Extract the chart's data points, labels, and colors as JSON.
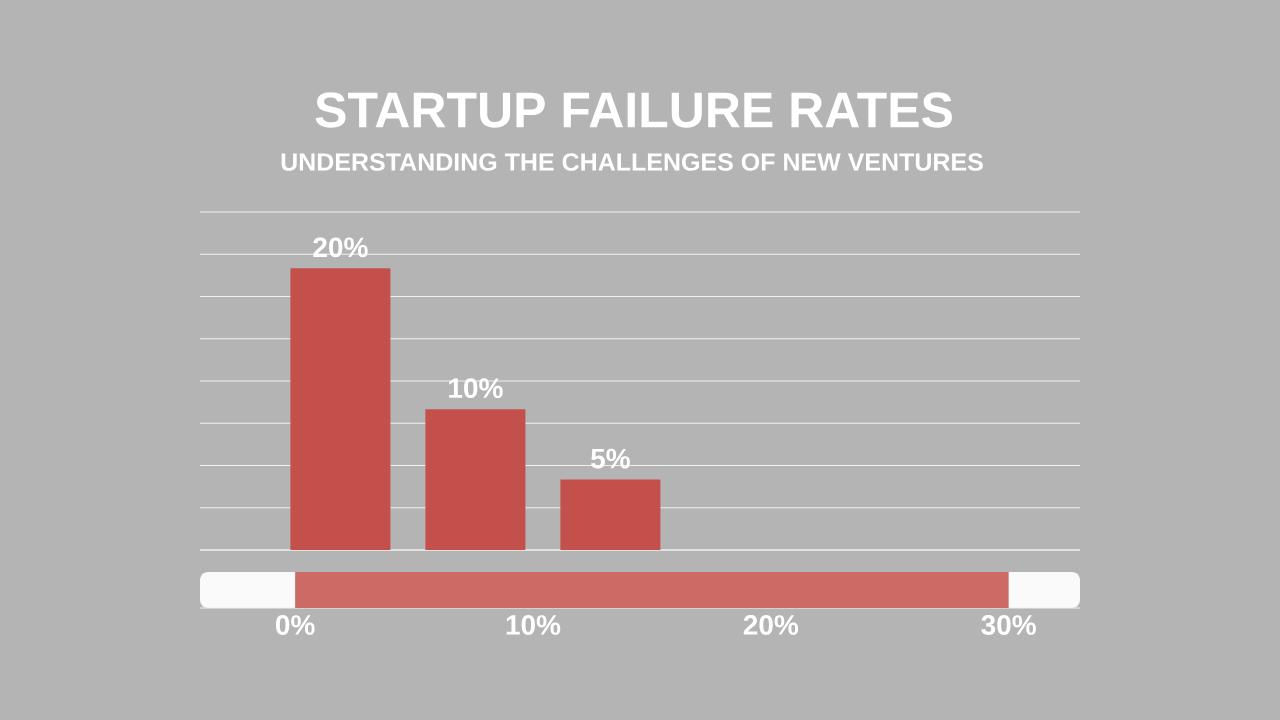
{
  "chart_data": [
    {
      "type": "bar",
      "title": "STARTUP FAILURE RATES",
      "subtitle": "UNDERSTANDING THE CHALLENGES OF NEW VENTURES",
      "categories": [
        null,
        null,
        null
      ],
      "values": [
        20,
        10,
        5
      ],
      "value_labels": [
        "20%",
        "10%",
        "5%"
      ],
      "color": "#c4504c",
      "ylim": [
        0,
        24
      ],
      "yticks": [
        {
          "value": 0,
          "label": null
        },
        {
          "value": 3,
          "label": null
        },
        {
          "value": 6,
          "label": null
        },
        {
          "value": 9,
          "label": null
        },
        {
          "value": 12,
          "label": null
        },
        {
          "value": 15,
          "label": null
        },
        {
          "value": 18,
          "label": null
        },
        {
          "value": 21,
          "label": null
        },
        {
          "value": 24,
          "label": null
        }
      ],
      "grid": "y",
      "tick_labels": false
    },
    {
      "type": "bar",
      "orientation": "horizontal",
      "categories": [
        null
      ],
      "values": [
        30
      ],
      "color": "#cc6a66",
      "xlim": [
        -4,
        33
      ],
      "xticks": [
        {
          "value": 0,
          "label": "0%"
        },
        {
          "value": 10,
          "label": "10%"
        },
        {
          "value": 20,
          "label": "20%"
        },
        {
          "value": 30,
          "label": "30%"
        }
      ],
      "tick_labels": "x"
    }
  ]
}
